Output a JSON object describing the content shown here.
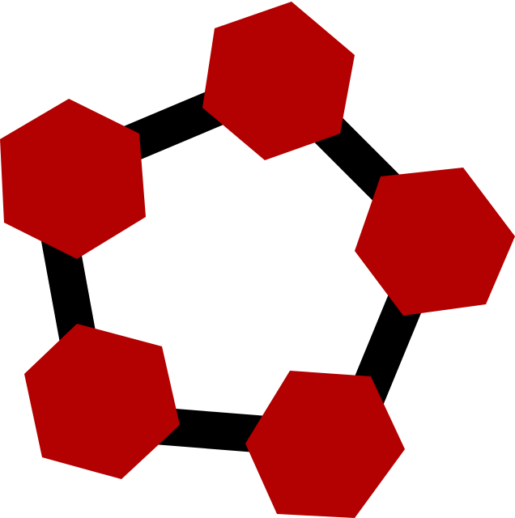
{
  "graphic": {
    "description_name": "hexagon-pentagon-ring",
    "ring_color": "#000000",
    "node_color": "#b30000",
    "background": "#ffffff",
    "node_count": 5
  }
}
